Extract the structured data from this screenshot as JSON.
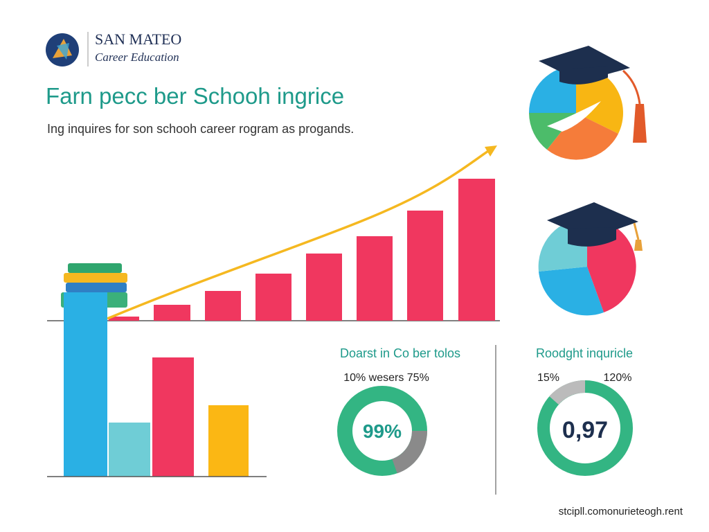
{
  "logo": {
    "name": "SAN MATEO",
    "subtitle": "Career Education"
  },
  "header": {
    "title": "Farn pecc ber Schooh ingrice",
    "subtitle": "Ing inquires for son schooh career rogram as progands."
  },
  "stats": [
    {
      "title": "Doarst in Co ber tolos",
      "caption": "10% wesers 75%",
      "center": "99%"
    },
    {
      "title": "Roodght inquricle",
      "left": "15%",
      "right": "120%",
      "center": "0,97"
    }
  ],
  "footer": "stcipll.comonurieteogh.rent"
}
